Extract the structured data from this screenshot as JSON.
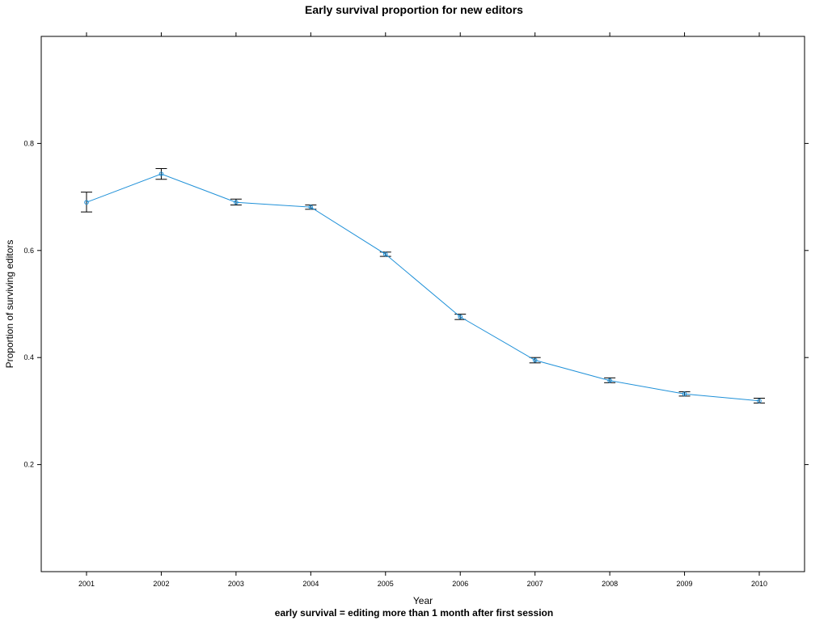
{
  "chart_data": {
    "type": "line",
    "title": "Early survival proportion for new editors",
    "subtitle": "early survival = editing more than 1 month after first session",
    "xlabel": "Year",
    "ylabel": "Proportion of surviving editors",
    "categories": [
      "2001",
      "2002",
      "2003",
      "2004",
      "2005",
      "2006",
      "2007",
      "2008",
      "2009",
      "2010"
    ],
    "series": [
      {
        "values": [
          0.69,
          0.743,
          0.69,
          0.681,
          0.593,
          0.476,
          0.395,
          0.357,
          0.332,
          0.319
        ],
        "lower": [
          0.672,
          0.733,
          0.685,
          0.677,
          0.589,
          0.471,
          0.39,
          0.353,
          0.328,
          0.315
        ],
        "upper": [
          0.709,
          0.753,
          0.696,
          0.685,
          0.597,
          0.481,
          0.4,
          0.362,
          0.336,
          0.324
        ],
        "color": "#1e90d8"
      }
    ],
    "ylim": [
      0.0,
      1.0
    ],
    "yticks": [
      0.2,
      0.4,
      0.6,
      0.8
    ],
    "ytick_labels": [
      "0.2",
      "0.4",
      "0.6",
      "0.8"
    ],
    "grid": false,
    "legend": "none",
    "marker": "circle",
    "error_bars": true,
    "axis_color": "#000000"
  }
}
